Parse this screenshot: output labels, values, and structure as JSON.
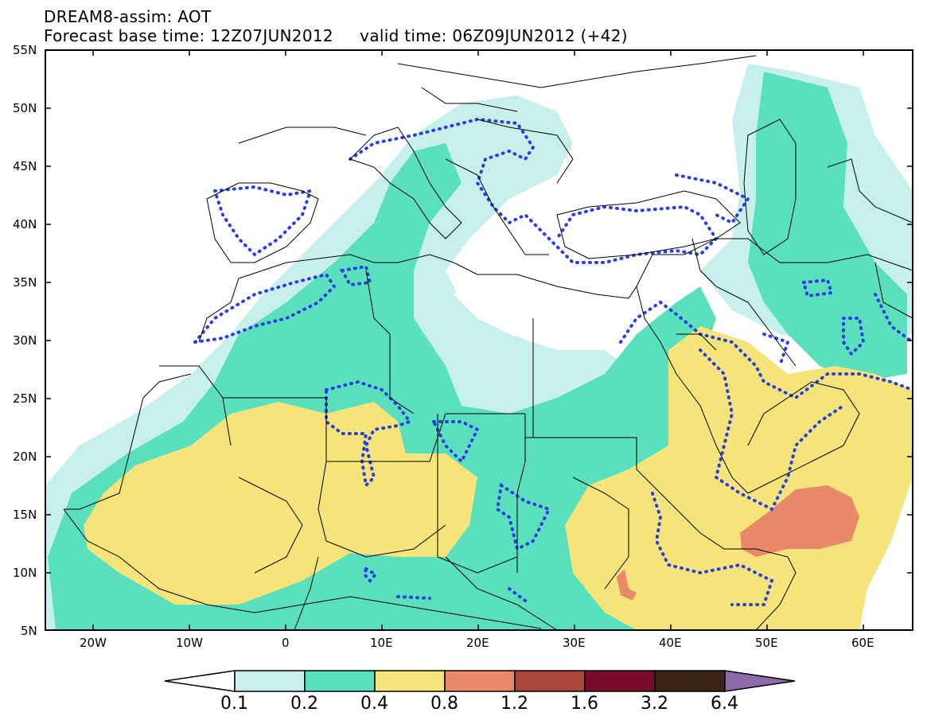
{
  "title": {
    "line1": "DREAM8-assim: AOT",
    "line2": "Forecast base time: 12Z07JUN2012     valid time: 06Z09JUN2012 (+42)"
  },
  "map": {
    "lon_range": [
      -25,
      65
    ],
    "lat_range": [
      5,
      55
    ],
    "y_ticks": [
      "55N",
      "50N",
      "45N",
      "40N",
      "35N",
      "30N",
      "25N",
      "20N",
      "15N",
      "10N",
      "5N"
    ],
    "x_ticks": [
      "20W",
      "10W",
      "0",
      "10E",
      "20E",
      "30E",
      "40E",
      "50E",
      "60E"
    ]
  },
  "colorbar": {
    "levels": [
      "0.1",
      "0.2",
      "0.4",
      "0.8",
      "1.2",
      "1.6",
      "3.2",
      "6.4"
    ],
    "colors": [
      "#ffffff",
      "#c7f0ea",
      "#5be0bd",
      "#f5e47a",
      "#e88a6a",
      "#a9483a",
      "#7a0a2a",
      "#3b2314",
      "#8e6aa8"
    ]
  }
}
